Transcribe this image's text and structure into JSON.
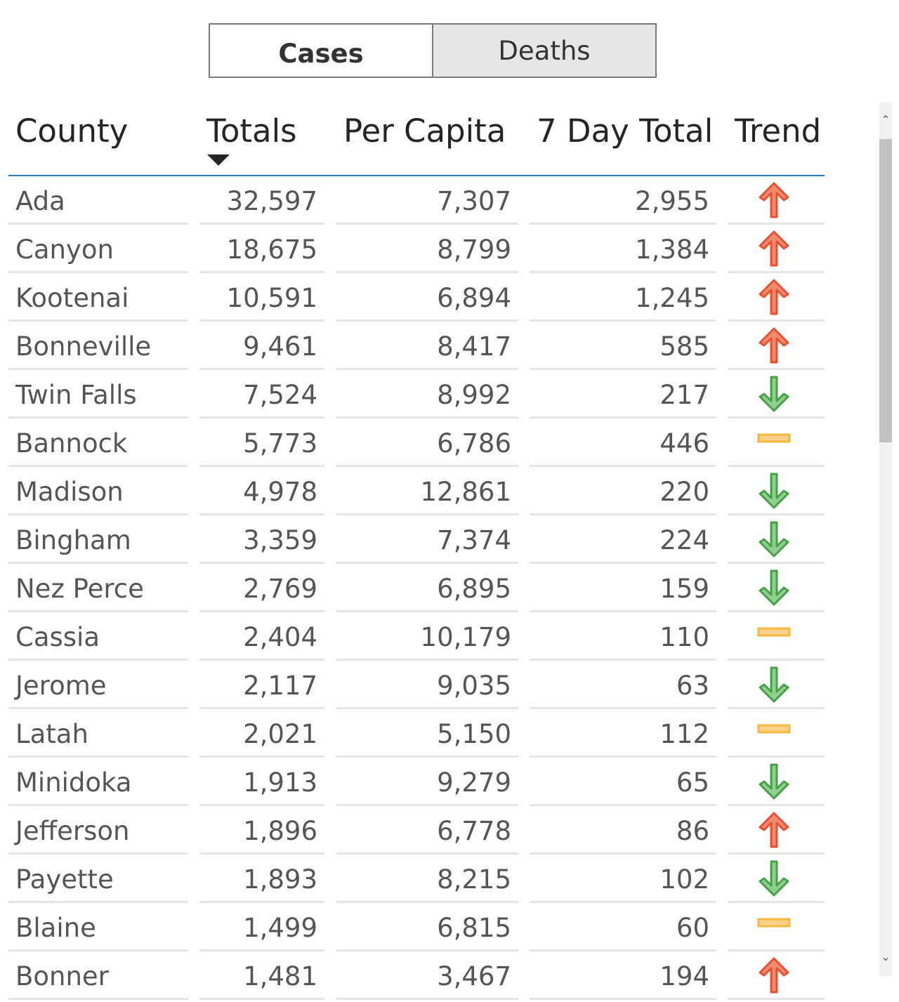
{
  "tabs": {
    "cases": "Cases",
    "deaths": "Deaths"
  },
  "colors": {
    "header_line": "#2a7ab9",
    "up": "#e8502f",
    "down": "#46a046",
    "flat": "#f5b942"
  },
  "table": {
    "headers": {
      "county": "County",
      "totals": "Totals",
      "per_capita": "Per Capita",
      "seven_day": "7 Day Total",
      "trend": "Trend"
    },
    "sort_icon": "sort-descending-icon",
    "rows": [
      {
        "county": "Ada",
        "totals": "32,597",
        "per_capita": "7,307",
        "seven_day": "2,955",
        "trend": "up"
      },
      {
        "county": "Canyon",
        "totals": "18,675",
        "per_capita": "8,799",
        "seven_day": "1,384",
        "trend": "up"
      },
      {
        "county": "Kootenai",
        "totals": "10,591",
        "per_capita": "6,894",
        "seven_day": "1,245",
        "trend": "up"
      },
      {
        "county": "Bonneville",
        "totals": "9,461",
        "per_capita": "8,417",
        "seven_day": "585",
        "trend": "up"
      },
      {
        "county": "Twin Falls",
        "totals": "7,524",
        "per_capita": "8,992",
        "seven_day": "217",
        "trend": "down"
      },
      {
        "county": "Bannock",
        "totals": "5,773",
        "per_capita": "6,786",
        "seven_day": "446",
        "trend": "flat"
      },
      {
        "county": "Madison",
        "totals": "4,978",
        "per_capita": "12,861",
        "seven_day": "220",
        "trend": "down"
      },
      {
        "county": "Bingham",
        "totals": "3,359",
        "per_capita": "7,374",
        "seven_day": "224",
        "trend": "down"
      },
      {
        "county": "Nez Perce",
        "totals": "2,769",
        "per_capita": "6,895",
        "seven_day": "159",
        "trend": "down"
      },
      {
        "county": "Cassia",
        "totals": "2,404",
        "per_capita": "10,179",
        "seven_day": "110",
        "trend": "flat"
      },
      {
        "county": "Jerome",
        "totals": "2,117",
        "per_capita": "9,035",
        "seven_day": "63",
        "trend": "down"
      },
      {
        "county": "Latah",
        "totals": "2,021",
        "per_capita": "5,150",
        "seven_day": "112",
        "trend": "flat"
      },
      {
        "county": "Minidoka",
        "totals": "1,913",
        "per_capita": "9,279",
        "seven_day": "65",
        "trend": "down"
      },
      {
        "county": "Jefferson",
        "totals": "1,896",
        "per_capita": "6,778",
        "seven_day": "86",
        "trend": "up"
      },
      {
        "county": "Payette",
        "totals": "1,893",
        "per_capita": "8,215",
        "seven_day": "102",
        "trend": "down"
      },
      {
        "county": "Blaine",
        "totals": "1,499",
        "per_capita": "6,815",
        "seven_day": "60",
        "trend": "flat"
      },
      {
        "county": "Bonner",
        "totals": "1,481",
        "per_capita": "3,467",
        "seven_day": "194",
        "trend": "up"
      }
    ]
  },
  "scrollbar": {
    "up_icon": "chevron-up-icon",
    "down_icon": "chevron-down-icon"
  }
}
